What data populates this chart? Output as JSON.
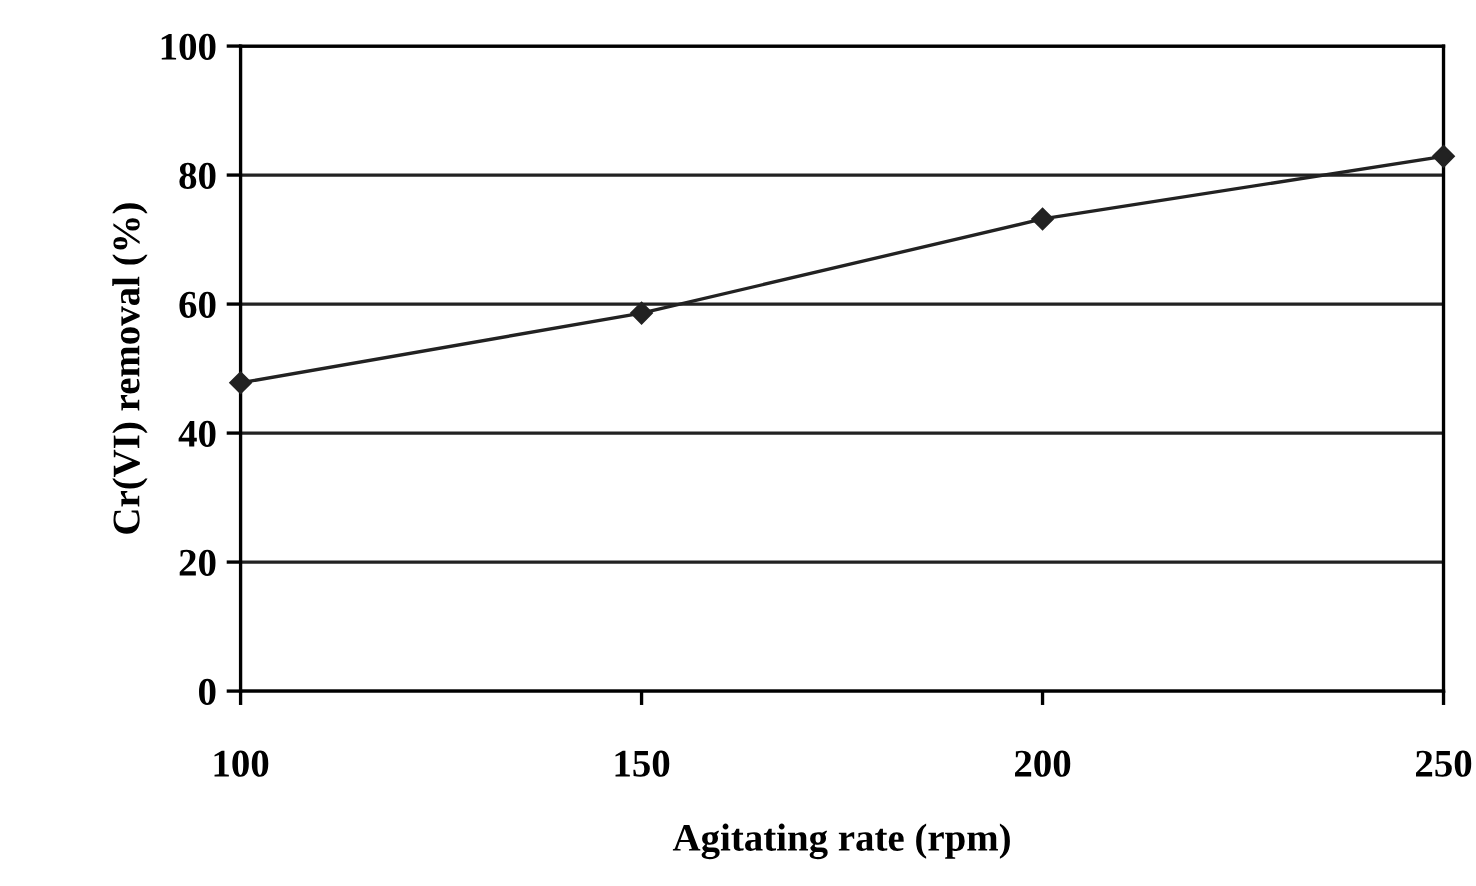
{
  "chart_data": {
    "type": "line",
    "xlabel": "Agitating rate (rpm)",
    "ylabel": "Cr(VI) removal (%)",
    "x": [
      100,
      150,
      200,
      250
    ],
    "series": [
      {
        "color": "#222222",
        "values": [
          47.8,
          58.6,
          73.2,
          82.9
        ]
      }
    ],
    "xlim": [
      100,
      250
    ],
    "xticks": [
      100,
      150,
      200,
      250
    ],
    "ylim": [
      0,
      100
    ],
    "yticks": [
      0,
      20,
      40,
      60,
      80,
      100
    ],
    "grid": "y",
    "marker": "diamond",
    "line_style": "solid"
  }
}
